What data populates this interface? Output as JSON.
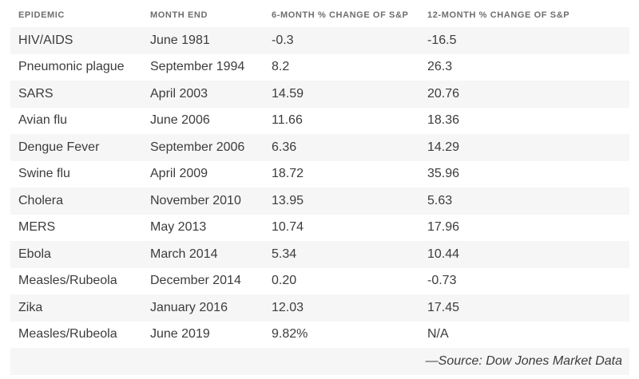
{
  "table": {
    "headers": [
      "EPIDEMIC",
      "MONTH END",
      "6-MONTH % CHANGE OF S&P",
      "12-MONTH % CHANGE OF S&P"
    ],
    "rows": [
      {
        "epidemic": "HIV/AIDS",
        "month_end": "June 1981",
        "six_month": "-0.3",
        "twelve_month": "-16.5"
      },
      {
        "epidemic": "Pneumonic plague",
        "month_end": "September 1994",
        "six_month": "8.2",
        "twelve_month": "26.3"
      },
      {
        "epidemic": "SARS",
        "month_end": "April 2003",
        "six_month": "14.59",
        "twelve_month": "20.76"
      },
      {
        "epidemic": "Avian flu",
        "month_end": "June 2006",
        "six_month": "11.66",
        "twelve_month": "18.36"
      },
      {
        "epidemic": "Dengue Fever",
        "month_end": "September 2006",
        "six_month": "6.36",
        "twelve_month": "14.29"
      },
      {
        "epidemic": "Swine flu",
        "month_end": "April 2009",
        "six_month": "18.72",
        "twelve_month": "35.96"
      },
      {
        "epidemic": "Cholera",
        "month_end": "November 2010",
        "six_month": "13.95",
        "twelve_month": "5.63"
      },
      {
        "epidemic": "MERS",
        "month_end": "May 2013",
        "six_month": "10.74",
        "twelve_month": "17.96"
      },
      {
        "epidemic": "Ebola",
        "month_end": "March 2014",
        "six_month": "5.34",
        "twelve_month": "10.44"
      },
      {
        "epidemic": "Measles/Rubeola",
        "month_end": "December 2014",
        "six_month": "0.20",
        "twelve_month": "-0.73"
      },
      {
        "epidemic": "Zika",
        "month_end": "January 2016",
        "six_month": "12.03",
        "twelve_month": "17.45"
      },
      {
        "epidemic": "Measles/Rubeola",
        "month_end": "June 2019",
        "six_month": "9.82%",
        "twelve_month": "N/A"
      }
    ],
    "source": "—Source: Dow Jones Market Data"
  },
  "colors": {
    "background": "#ffffff",
    "stripe": "#f6f6f6",
    "header_text": "#6e6e6e",
    "body_text": "#3c3c3c"
  },
  "chart_data": {
    "type": "table",
    "title": "",
    "columns": [
      "EPIDEMIC",
      "MONTH END",
      "6-MONTH % CHANGE OF S&P",
      "12-MONTH % CHANGE OF S&P"
    ],
    "rows": [
      [
        "HIV/AIDS",
        "June 1981",
        -0.3,
        -16.5
      ],
      [
        "Pneumonic plague",
        "September 1994",
        8.2,
        26.3
      ],
      [
        "SARS",
        "April 2003",
        14.59,
        20.76
      ],
      [
        "Avian flu",
        "June 2006",
        11.66,
        18.36
      ],
      [
        "Dengue Fever",
        "September 2006",
        6.36,
        14.29
      ],
      [
        "Swine flu",
        "April 2009",
        18.72,
        35.96
      ],
      [
        "Cholera",
        "November 2010",
        13.95,
        5.63
      ],
      [
        "MERS",
        "May 2013",
        10.74,
        17.96
      ],
      [
        "Ebola",
        "March 2014",
        5.34,
        10.44
      ],
      [
        "Measles/Rubeola",
        "December 2014",
        0.2,
        -0.73
      ],
      [
        "Zika",
        "January 2016",
        12.03,
        17.45
      ],
      [
        "Measles/Rubeola",
        "June 2019",
        "9.82%",
        "N/A"
      ]
    ],
    "source": "—Source: Dow Jones Market Data",
    "layout_hints": {
      "striped_rows": "odd",
      "header_case": "uppercase",
      "source_align": "right"
    }
  }
}
